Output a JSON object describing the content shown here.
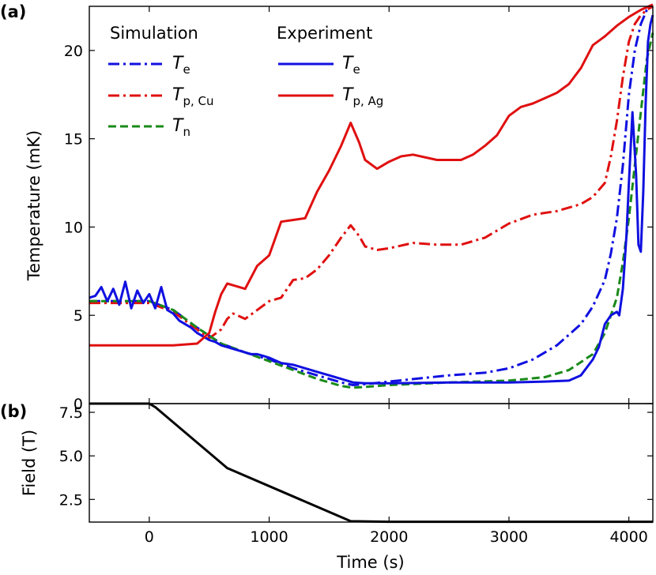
{
  "chart_data": [
    {
      "panel_label": "(a)",
      "type": "line",
      "xlabel": "",
      "ylabel": "Temperature (mK)",
      "xlim": [
        -500,
        4200
      ],
      "ylim": [
        0,
        22.5
      ],
      "yticks": [
        0,
        5,
        10,
        15,
        20
      ],
      "ytick_labels": [
        "0",
        "5",
        "10",
        "15",
        "20"
      ],
      "legend": {
        "placement": "top-left",
        "groups": [
          {
            "title": "Simulation",
            "entries": [
              {
                "symbol": "T",
                "sub": "e",
                "series": "sim_Te"
              },
              {
                "symbol": "T",
                "sub": "p, Cu",
                "series": "sim_TpCu"
              },
              {
                "symbol": "T",
                "sub": "n",
                "series": "sim_Tn"
              }
            ]
          },
          {
            "title": "Experiment",
            "entries": [
              {
                "symbol": "T",
                "sub": "e",
                "series": "exp_Te"
              },
              {
                "symbol": "T",
                "sub": "p, Ag",
                "series": "exp_TpAg"
              }
            ]
          }
        ]
      },
      "series": [
        {
          "id": "sim_Te",
          "color": "#1010e0",
          "style": "dashdot",
          "x": [
            -500,
            0,
            200,
            400,
            600,
            800,
            1000,
            1200,
            1400,
            1600,
            1700,
            1800,
            2000,
            2500,
            2800,
            3000,
            3200,
            3400,
            3600,
            3700,
            3800,
            3850,
            3900,
            3950,
            4000,
            4050,
            4100,
            4150,
            4200
          ],
          "y": [
            5.8,
            5.8,
            5.3,
            4.3,
            3.4,
            2.9,
            2.5,
            2.0,
            1.6,
            1.2,
            1.05,
            1.1,
            1.25,
            1.6,
            1.75,
            2.0,
            2.5,
            3.3,
            4.5,
            5.5,
            7.0,
            8.5,
            10.5,
            13.5,
            17.5,
            20.0,
            21.5,
            22.3,
            22.5
          ]
        },
        {
          "id": "sim_TpCu",
          "color": "#e01010",
          "style": "dashdot",
          "x": [
            -500,
            0,
            200,
            400,
            500,
            600,
            650,
            700,
            800,
            1000,
            1100,
            1200,
            1300,
            1400,
            1500,
            1600,
            1680,
            1750,
            1800,
            1900,
            2000,
            2200,
            2400,
            2600,
            2800,
            3000,
            3200,
            3400,
            3600,
            3700,
            3800,
            3850,
            3900,
            3950,
            4000,
            4050,
            4100,
            4150,
            4200
          ],
          "y": [
            5.7,
            5.7,
            5.2,
            4.2,
            3.7,
            4.2,
            4.8,
            5.1,
            4.8,
            5.8,
            6.0,
            7.0,
            7.1,
            7.6,
            8.4,
            9.4,
            10.1,
            9.5,
            8.9,
            8.7,
            8.8,
            9.1,
            9.0,
            9.0,
            9.4,
            10.2,
            10.7,
            10.9,
            11.3,
            11.7,
            12.5,
            14.0,
            16.0,
            18.5,
            20.5,
            21.5,
            22.0,
            22.3,
            22.5
          ]
        },
        {
          "id": "sim_Tn",
          "color": "#1a8a1a",
          "style": "dashed",
          "x": [
            -500,
            0,
            200,
            400,
            600,
            800,
            1000,
            1200,
            1400,
            1600,
            1700,
            1800,
            2000,
            2500,
            3000,
            3300,
            3500,
            3700,
            3800,
            3900,
            3950,
            4000,
            4050,
            4100,
            4150,
            4200
          ],
          "y": [
            5.8,
            5.8,
            5.3,
            4.3,
            3.4,
            2.9,
            2.4,
            1.9,
            1.4,
            1.0,
            0.9,
            0.95,
            1.05,
            1.2,
            1.3,
            1.5,
            1.9,
            2.8,
            4.0,
            6.0,
            8.0,
            10.5,
            13.5,
            16.5,
            19.5,
            21.0
          ]
        },
        {
          "id": "exp_Te",
          "color": "#1010e0",
          "style": "solid",
          "x": [
            -500,
            -450,
            -400,
            -350,
            -300,
            -250,
            -200,
            -150,
            -100,
            -50,
            0,
            50,
            100,
            150,
            200,
            250,
            300,
            350,
            400,
            450,
            500,
            550,
            600,
            650,
            700,
            750,
            800,
            850,
            900,
            950,
            1000,
            1100,
            1200,
            1300,
            1400,
            1500,
            1600,
            1700,
            1800,
            2000,
            2500,
            3000,
            3300,
            3500,
            3600,
            3700,
            3750,
            3800,
            3850,
            3900,
            3920,
            3950,
            3980,
            4000,
            4030,
            4060,
            4080,
            4100,
            4120,
            4140,
            4160,
            4180,
            4200
          ],
          "y": [
            6.0,
            6.1,
            6.6,
            5.8,
            6.5,
            5.6,
            6.9,
            5.4,
            6.4,
            5.7,
            6.2,
            5.4,
            6.6,
            5.3,
            5.1,
            4.7,
            4.5,
            4.3,
            4.0,
            3.8,
            3.6,
            3.5,
            3.3,
            3.2,
            3.1,
            3.0,
            2.9,
            2.8,
            2.8,
            2.7,
            2.6,
            2.3,
            2.2,
            2.0,
            1.8,
            1.6,
            1.4,
            1.2,
            1.15,
            1.15,
            1.2,
            1.2,
            1.25,
            1.3,
            1.6,
            2.5,
            3.2,
            4.5,
            5.0,
            5.2,
            5.0,
            6.5,
            9.5,
            12.5,
            16.5,
            13.0,
            9.0,
            8.6,
            12.0,
            17.0,
            20.5,
            21.5,
            22.0
          ]
        },
        {
          "id": "exp_TpAg",
          "color": "#e01010",
          "style": "solid",
          "x": [
            -500,
            0,
            200,
            400,
            500,
            550,
            600,
            650,
            700,
            800,
            900,
            1000,
            1100,
            1200,
            1300,
            1400,
            1500,
            1600,
            1680,
            1750,
            1800,
            1900,
            2000,
            2100,
            2200,
            2400,
            2500,
            2600,
            2700,
            2800,
            2900,
            3000,
            3100,
            3200,
            3300,
            3400,
            3500,
            3600,
            3700,
            3800,
            3900,
            4000,
            4100,
            4200
          ],
          "y": [
            3.3,
            3.3,
            3.3,
            3.4,
            4.0,
            5.2,
            6.2,
            6.8,
            6.7,
            6.5,
            7.8,
            8.4,
            10.3,
            10.4,
            10.5,
            12.0,
            13.2,
            14.6,
            15.9,
            14.8,
            13.8,
            13.3,
            13.7,
            14.0,
            14.1,
            13.8,
            13.8,
            13.8,
            14.1,
            14.6,
            15.2,
            16.3,
            16.8,
            17.0,
            17.3,
            17.6,
            18.1,
            19.0,
            20.3,
            20.8,
            21.4,
            21.9,
            22.3,
            22.6
          ]
        }
      ]
    },
    {
      "panel_label": "(b)",
      "type": "line",
      "xlabel": "Time (s)",
      "ylabel": "Field (T)",
      "xlim": [
        -500,
        4200
      ],
      "ylim": [
        1.2,
        8.0
      ],
      "yticks": [
        2.5,
        5.0,
        7.5
      ],
      "ytick_labels": [
        "2.5",
        "5.0",
        "7.5"
      ],
      "xticks": [
        0,
        1000,
        2000,
        3000,
        4000
      ],
      "xtick_labels": [
        "0",
        "1000",
        "2000",
        "3000",
        "4000"
      ],
      "series": [
        {
          "id": "field",
          "color": "#000000",
          "style": "solid",
          "x": [
            -500,
            0,
            50,
            650,
            1680,
            2000,
            4200
          ],
          "y": [
            8.0,
            8.0,
            7.8,
            4.3,
            1.25,
            1.22,
            1.22
          ]
        }
      ]
    }
  ]
}
